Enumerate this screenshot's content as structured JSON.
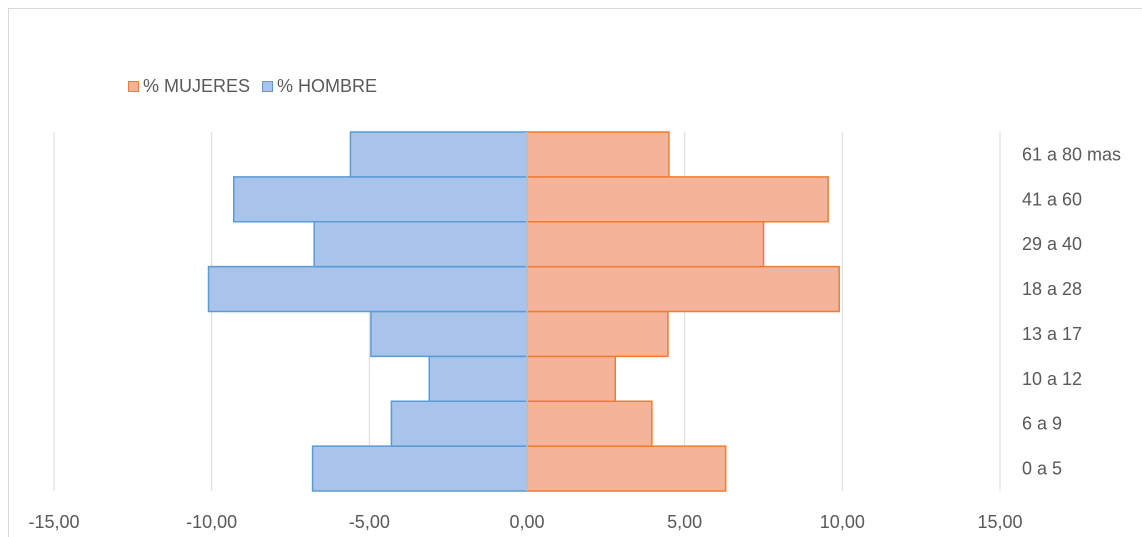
{
  "chart_data": {
    "type": "bar",
    "orientation": "horizontal",
    "layout": "population-pyramid",
    "categories": [
      "0 a 5",
      "6 a 9",
      "10 a 12",
      "13 a 17",
      "18 a 28",
      "29 a 40",
      "41 a 60",
      "61 a 80 mas"
    ],
    "series": [
      {
        "name": "% MUJERES",
        "values": [
          6.3,
          3.96,
          2.8,
          4.47,
          9.9,
          7.5,
          9.55,
          4.5
        ],
        "fill": "#f5b49a",
        "stroke": "#ed7d31"
      },
      {
        "name": "% HOMBRE",
        "values": [
          -6.8,
          -4.3,
          -3.1,
          -4.95,
          -10.1,
          -6.75,
          -9.3,
          -5.6
        ],
        "fill": "#a9c4ea",
        "stroke": "#5b9bd5"
      }
    ],
    "xlim": [
      -15,
      15
    ],
    "xticks": [
      "-15,00",
      "-10,00",
      "-5,00",
      "0,00",
      "5,00",
      "10,00",
      "15,00"
    ],
    "xtick_values": [
      -15,
      -10,
      -5,
      0,
      5,
      10,
      15
    ],
    "grid": true,
    "legend_position": "top-left",
    "category_labels_side": "right"
  }
}
